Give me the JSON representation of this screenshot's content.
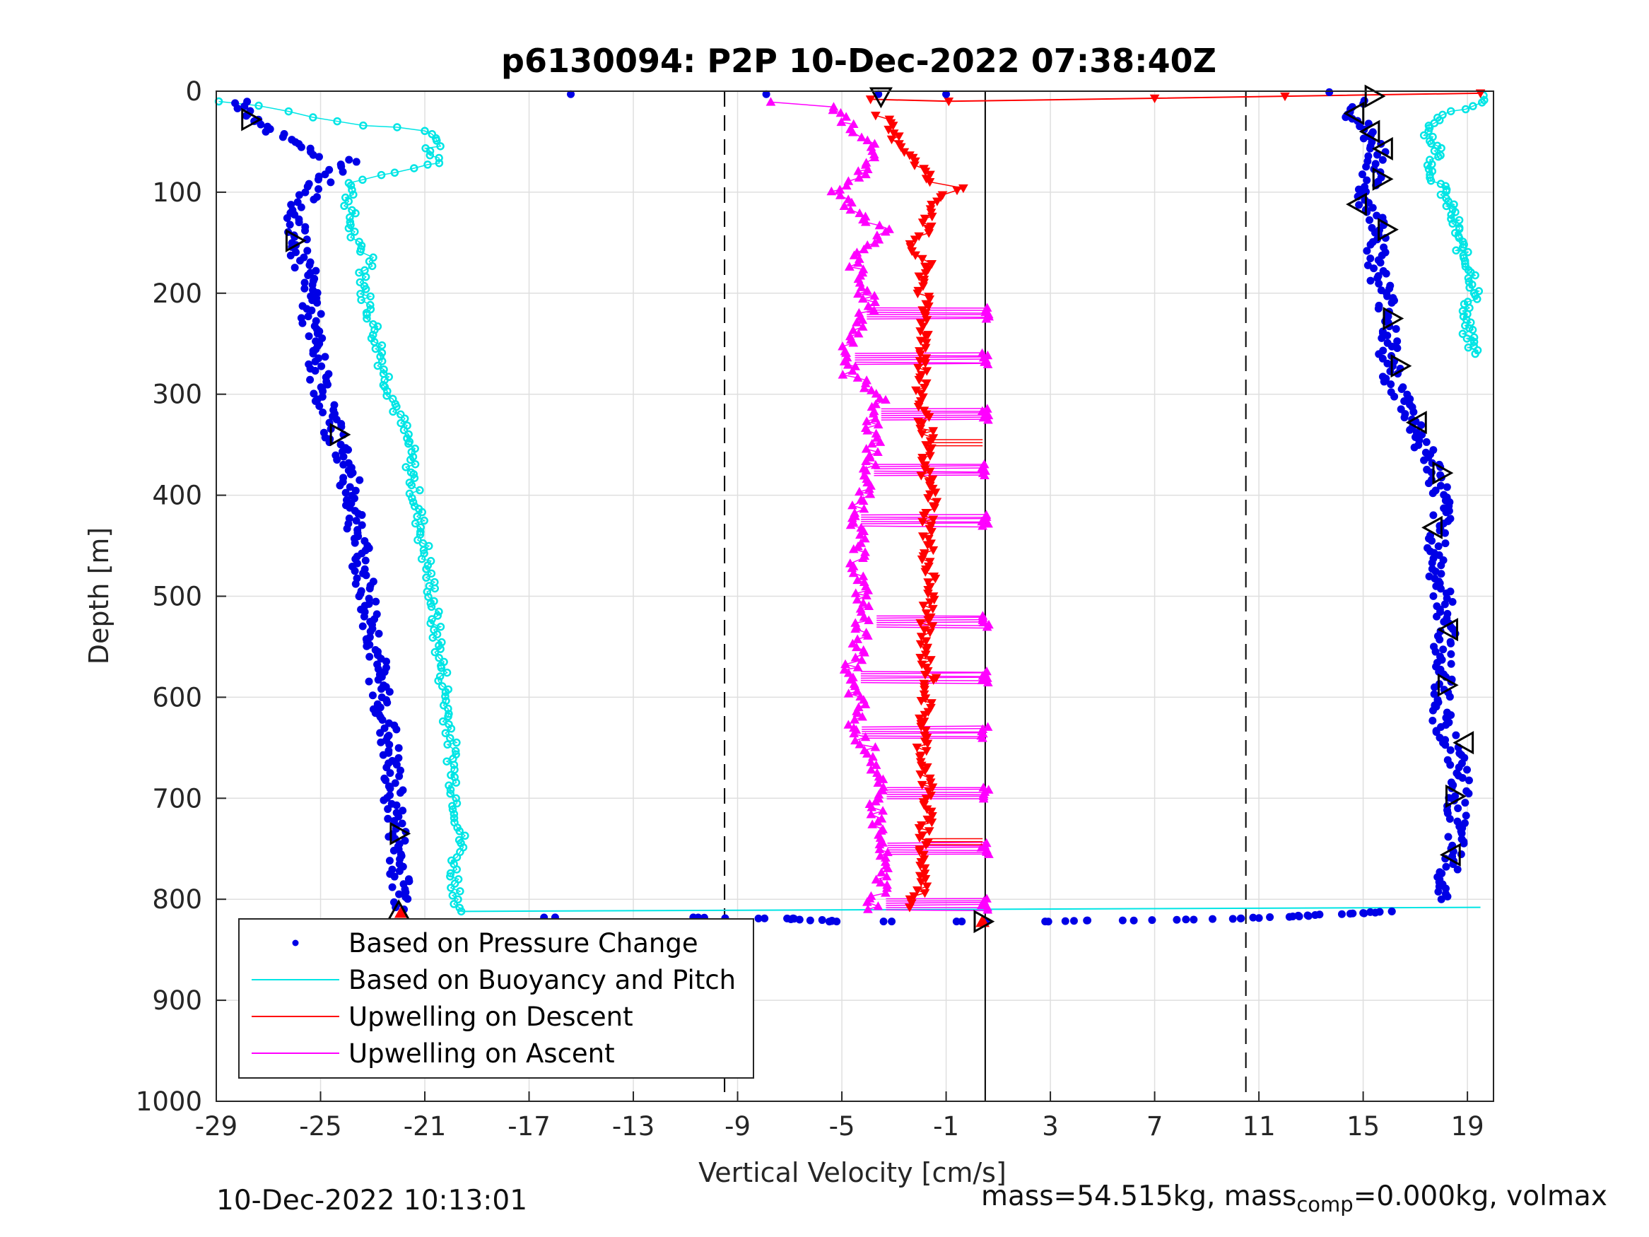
{
  "chart_data": {
    "type": "scatter",
    "title": "p6130094: P2P 10-Dec-2022 07:38:40Z",
    "xlabel": "Vertical Velocity [cm/s]",
    "ylabel": "Depth [m]",
    "xlim": [
      -29,
      20
    ],
    "ylim": [
      0,
      1000
    ],
    "y_reversed": true,
    "xticks": [
      "-29",
      "-25",
      "-21",
      "-17",
      "-13",
      "-9",
      "-5",
      "-1",
      "3",
      "7",
      "11",
      "15",
      "19"
    ],
    "yticks": [
      "0",
      "100",
      "200",
      "300",
      "400",
      "500",
      "600",
      "700",
      "800",
      "900",
      "1000"
    ],
    "grid": true,
    "legend_position": "bottom-left",
    "reference_lines": [
      {
        "x": -9.5,
        "style": "dashed"
      },
      {
        "x": 0.5,
        "style": "solid"
      },
      {
        "x": 10.5,
        "style": "dashed"
      }
    ],
    "series": [
      {
        "name": "Based on Pressure Change",
        "color": "#0000e6",
        "marker": "dot",
        "descent": [
          [
            -28.1,
            10
          ],
          [
            -27.5,
            25
          ],
          [
            -26.8,
            40
          ],
          [
            -25.9,
            55
          ],
          [
            -24.7,
            65
          ],
          [
            -23.6,
            70
          ],
          [
            -24.5,
            80
          ],
          [
            -25.2,
            95
          ],
          [
            -25.7,
            110
          ],
          [
            -26.0,
            130
          ],
          [
            -25.9,
            150
          ],
          [
            -25.6,
            175
          ],
          [
            -25.3,
            200
          ],
          [
            -25.4,
            230
          ],
          [
            -25.2,
            260
          ],
          [
            -25.0,
            290
          ],
          [
            -24.7,
            320
          ],
          [
            -24.4,
            345
          ],
          [
            -24.0,
            370
          ],
          [
            -23.8,
            400
          ],
          [
            -23.6,
            430
          ],
          [
            -23.5,
            460
          ],
          [
            -23.3,
            490
          ],
          [
            -23.1,
            520
          ],
          [
            -22.9,
            550
          ],
          [
            -22.8,
            580
          ],
          [
            -22.6,
            610
          ],
          [
            -22.4,
            640
          ],
          [
            -22.3,
            670
          ],
          [
            -22.2,
            700
          ],
          [
            -22.1,
            730
          ],
          [
            -22.0,
            760
          ],
          [
            -21.9,
            790
          ],
          [
            -21.8,
            810
          ]
        ],
        "ascent": [
          [
            15.0,
            10
          ],
          [
            14.6,
            25
          ],
          [
            15.1,
            40
          ],
          [
            15.6,
            60
          ],
          [
            15.4,
            80
          ],
          [
            15.0,
            100
          ],
          [
            15.3,
            120
          ],
          [
            15.8,
            140
          ],
          [
            15.5,
            160
          ],
          [
            15.6,
            180
          ],
          [
            15.8,
            200
          ],
          [
            16.1,
            230
          ],
          [
            15.9,
            260
          ],
          [
            16.2,
            290
          ],
          [
            16.8,
            320
          ],
          [
            17.3,
            350
          ],
          [
            17.8,
            380
          ],
          [
            18.0,
            410
          ],
          [
            17.9,
            440
          ],
          [
            17.8,
            470
          ],
          [
            18.0,
            500
          ],
          [
            18.3,
            530
          ],
          [
            18.0,
            560
          ],
          [
            18.1,
            590
          ],
          [
            18.0,
            620
          ],
          [
            18.4,
            650
          ],
          [
            18.7,
            680
          ],
          [
            18.6,
            710
          ],
          [
            18.5,
            740
          ],
          [
            18.3,
            770
          ],
          [
            18.0,
            800
          ]
        ],
        "surface": [
          [
            -15.4,
            3
          ],
          [
            -7.9,
            3
          ],
          [
            -3.6,
            3
          ],
          [
            -1.0,
            3
          ],
          [
            13.7,
            1
          ]
        ],
        "bottom_transit": [
          [
            -16.0,
            818
          ],
          [
            -10.7,
            818
          ],
          [
            -8.2,
            819
          ],
          [
            -7.1,
            819
          ],
          [
            -5.2,
            822
          ],
          [
            -3.4,
            822
          ],
          [
            -0.6,
            822
          ],
          [
            0.5,
            822
          ],
          [
            2.8,
            822
          ],
          [
            4.4,
            821
          ],
          [
            6.2,
            821
          ],
          [
            8.2,
            820
          ],
          [
            10.3,
            819
          ],
          [
            12.3,
            817
          ],
          [
            14.6,
            814
          ],
          [
            16.1,
            812
          ]
        ]
      },
      {
        "name": "Based on Buoyancy and Pitch",
        "color": "#00e5e5",
        "marker": "circle",
        "descent": [
          [
            -28.9,
            10
          ],
          [
            -27.2,
            15
          ],
          [
            -26.2,
            20
          ],
          [
            -25.1,
            25
          ],
          [
            -24.4,
            30
          ],
          [
            -21.0,
            40
          ],
          [
            -20.4,
            50
          ],
          [
            -21.0,
            60
          ],
          [
            -20.3,
            70
          ],
          [
            -22.0,
            80
          ],
          [
            -23.8,
            90
          ],
          [
            -23.9,
            110
          ],
          [
            -23.8,
            140
          ],
          [
            -23.5,
            160
          ],
          [
            -22.9,
            165
          ],
          [
            -23.3,
            180
          ],
          [
            -23.3,
            200
          ],
          [
            -23.0,
            230
          ],
          [
            -22.7,
            260
          ],
          [
            -22.4,
            290
          ],
          [
            -22.0,
            320
          ],
          [
            -21.6,
            350
          ],
          [
            -21.5,
            380
          ],
          [
            -21.3,
            410
          ],
          [
            -21.1,
            440
          ],
          [
            -20.9,
            470
          ],
          [
            -20.7,
            500
          ],
          [
            -20.6,
            530
          ],
          [
            -20.4,
            560
          ],
          [
            -20.2,
            600
          ],
          [
            -20.0,
            640
          ],
          [
            -19.9,
            680
          ],
          [
            -19.7,
            720
          ],
          [
            -19.6,
            745
          ],
          [
            -19.9,
            770
          ],
          [
            -19.7,
            800
          ],
          [
            -19.6,
            812
          ]
        ],
        "ascent": [
          [
            19.5,
            5
          ],
          [
            19.3,
            15
          ],
          [
            18.2,
            20
          ],
          [
            17.5,
            40
          ],
          [
            17.9,
            60
          ],
          [
            17.6,
            80
          ],
          [
            18.1,
            100
          ],
          [
            18.4,
            120
          ],
          [
            18.6,
            140
          ],
          [
            18.8,
            160
          ],
          [
            19.2,
            180
          ],
          [
            19.3,
            200
          ],
          [
            18.9,
            220
          ],
          [
            19.0,
            240
          ],
          [
            19.3,
            260
          ]
        ],
        "bottom_transit": [
          [
            -19.6,
            812
          ],
          [
            19.5,
            808
          ]
        ]
      },
      {
        "name": "Upwelling on Descent",
        "color": "#ff0000",
        "marker": "triangle-down",
        "profile": [
          [
            -3.5,
            25
          ],
          [
            -3.0,
            45
          ],
          [
            -2.1,
            70
          ],
          [
            -1.6,
            90
          ],
          [
            -0.5,
            95
          ],
          [
            -1.2,
            105
          ],
          [
            -1.5,
            120
          ],
          [
            -1.9,
            140
          ],
          [
            -2.4,
            155
          ],
          [
            -1.8,
            170
          ],
          [
            -1.9,
            200
          ],
          [
            -1.8,
            230
          ],
          [
            -1.8,
            260
          ],
          [
            -2.0,
            290
          ],
          [
            -1.9,
            320
          ],
          [
            -1.7,
            340
          ],
          [
            -1.9,
            370
          ],
          [
            -1.5,
            400
          ],
          [
            -1.7,
            430
          ],
          [
            -1.7,
            460
          ],
          [
            -1.6,
            490
          ],
          [
            -1.7,
            520
          ],
          [
            -1.9,
            550
          ],
          [
            -1.6,
            580
          ],
          [
            -1.8,
            610
          ],
          [
            -1.9,
            640
          ],
          [
            -1.8,
            670
          ],
          [
            -1.7,
            700
          ],
          [
            -1.8,
            730
          ],
          [
            -1.9,
            760
          ],
          [
            -1.9,
            790
          ],
          [
            -2.4,
            808
          ]
        ],
        "surface_line": [
          [
            -3.9,
            8
          ],
          [
            -0.9,
            10
          ],
          [
            7.0,
            7
          ],
          [
            12.0,
            5
          ],
          [
            19.5,
            2
          ]
        ],
        "bottom_points": [
          [
            -21.9,
            813
          ],
          [
            0.4,
            822
          ]
        ]
      },
      {
        "name": "Upwelling on Ascent",
        "color": "#ff00ff",
        "marker": "triangle-up",
        "profile": [
          [
            -7.5,
            10
          ],
          [
            -5.5,
            15
          ],
          [
            -4.8,
            30
          ],
          [
            -4.2,
            45
          ],
          [
            -3.6,
            60
          ],
          [
            -4.2,
            80
          ],
          [
            -5.2,
            100
          ],
          [
            -4.4,
            120
          ],
          [
            -3.2,
            140
          ],
          [
            -4.6,
            160
          ],
          [
            -4.3,
            190
          ],
          [
            -3.9,
            210
          ],
          [
            -4.3,
            230
          ],
          [
            -4.8,
            260
          ],
          [
            -4.7,
            280
          ],
          [
            -3.5,
            300
          ],
          [
            -3.8,
            320
          ],
          [
            -3.8,
            350
          ],
          [
            -4.0,
            380
          ],
          [
            -4.3,
            410
          ],
          [
            -4.4,
            440
          ],
          [
            -4.4,
            470
          ],
          [
            -4.2,
            500
          ],
          [
            -4.2,
            520
          ],
          [
            -4.3,
            550
          ],
          [
            -4.8,
            580
          ],
          [
            -4.3,
            610
          ],
          [
            -4.6,
            630
          ],
          [
            -3.7,
            660
          ],
          [
            -3.7,
            700
          ],
          [
            -3.6,
            730
          ],
          [
            -3.5,
            760
          ],
          [
            -3.4,
            790
          ],
          [
            -4.0,
            810
          ]
        ],
        "horizontal_spikes": [
          [
            220,
            0.5
          ],
          [
            265,
            0.5
          ],
          [
            320,
            0.5
          ],
          [
            375,
            0.5
          ],
          [
            425,
            0.5
          ],
          [
            525,
            0.5
          ],
          [
            580,
            0.5
          ],
          [
            635,
            0.5
          ],
          [
            695,
            0.5
          ],
          [
            750,
            0.5
          ],
          [
            805,
            0.5
          ]
        ]
      }
    ],
    "triangle_markers": [
      {
        "x": -3.5,
        "y": 5,
        "dir": "down"
      },
      {
        "x": -27.7,
        "y": 28,
        "dir": "right"
      },
      {
        "x": -26.0,
        "y": 148,
        "dir": "right"
      },
      {
        "x": -24.3,
        "y": 340,
        "dir": "right"
      },
      {
        "x": -22.0,
        "y": 735,
        "dir": "right"
      },
      {
        "x": -22.0,
        "y": 812,
        "dir": "up"
      },
      {
        "x": 0.4,
        "y": 822,
        "dir": "right"
      },
      {
        "x": 15.4,
        "y": 5,
        "dir": "right"
      },
      {
        "x": 14.7,
        "y": 22,
        "dir": "left"
      },
      {
        "x": 15.3,
        "y": 40,
        "dir": "left"
      },
      {
        "x": 15.8,
        "y": 57,
        "dir": "left"
      },
      {
        "x": 15.7,
        "y": 87,
        "dir": "right"
      },
      {
        "x": 14.8,
        "y": 112,
        "dir": "left"
      },
      {
        "x": 15.9,
        "y": 137,
        "dir": "right"
      },
      {
        "x": 16.1,
        "y": 225,
        "dir": "right"
      },
      {
        "x": 16.4,
        "y": 272,
        "dir": "right"
      },
      {
        "x": 17.1,
        "y": 328,
        "dir": "left"
      },
      {
        "x": 18.0,
        "y": 378,
        "dir": "right"
      },
      {
        "x": 17.7,
        "y": 432,
        "dir": "left"
      },
      {
        "x": 18.3,
        "y": 533,
        "dir": "left"
      },
      {
        "x": 18.2,
        "y": 588,
        "dir": "right"
      },
      {
        "x": 18.9,
        "y": 645,
        "dir": "left"
      },
      {
        "x": 18.5,
        "y": 698,
        "dir": "right"
      },
      {
        "x": 18.4,
        "y": 756,
        "dir": "left"
      }
    ]
  },
  "footer": {
    "timestamp": "10-Dec-2022 10:13:01",
    "mass_prefix": "mass=54.515kg, mass",
    "mass_sub": "comp",
    "mass_suffix": "=0.000kg, volmax"
  }
}
